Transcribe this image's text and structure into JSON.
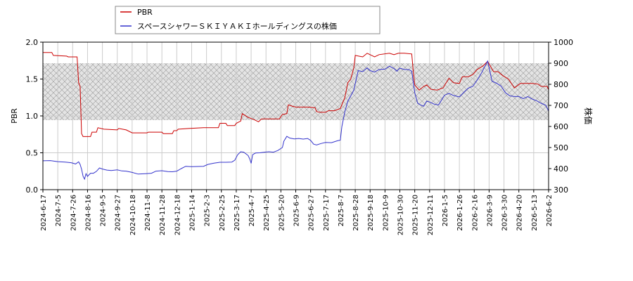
{
  "chart_data": {
    "type": "line",
    "legend": {
      "placement": "top-left",
      "items": [
        {
          "label": "PBR",
          "color": "#cc0000"
        },
        {
          "label": "スペースシャワーＳＫＩＹＡＫＩホールディングスの株価",
          "color": "#3333cc"
        }
      ]
    },
    "left_axis": {
      "label": "PBR",
      "range": [
        0,
        2.0
      ],
      "ticks": [
        "0.0",
        "0.5",
        "1.0",
        "1.5",
        "2.0"
      ]
    },
    "right_axis": {
      "label": "株価",
      "range": [
        300,
        1000
      ],
      "ticks": [
        "300",
        "400",
        "500",
        "600",
        "700",
        "800",
        "900",
        "1000"
      ]
    },
    "x_ticks": [
      "2024-6-17",
      "2024-7-5",
      "2024-7-26",
      "2024-8-16",
      "2024-9-5",
      "2024-9-27",
      "2024-10-18",
      "2024-11-8",
      "2024-11-28",
      "2024-12-18",
      "2025-1-14",
      "2025-2-3",
      "2025-2-25",
      "2025-3-17",
      "2025-4-7",
      "2025-4-25",
      "2025-5-20",
      "2025-6-9",
      "2025-6-27",
      "2025-7-17",
      "2025-8-7",
      "2025-8-28",
      "2025-9-18",
      "2025-10-9",
      "2025-10-30",
      "2025-11-20",
      "2025-12-11",
      "2026-1-5",
      "2026-1-26",
      "2026-2-16",
      "2026-3-9",
      "2026-3-30",
      "2026-4-20",
      "2026-5-13",
      "2026-6-2"
    ],
    "grid": true,
    "shaded_band": {
      "axis": "right",
      "range": [
        630,
        900
      ],
      "pattern": "crosshatch"
    },
    "series": [
      {
        "name": "PBR",
        "axis": "left",
        "color": "#cc0000",
        "points": [
          [
            0,
            1.86
          ],
          [
            0.6,
            1.86
          ],
          [
            0.7,
            1.82
          ],
          [
            1.6,
            1.81
          ],
          [
            1.7,
            1.8
          ],
          [
            2.3,
            1.8
          ],
          [
            2.4,
            1.45
          ],
          [
            2.5,
            1.4
          ],
          [
            2.6,
            0.76
          ],
          [
            2.7,
            0.72
          ],
          [
            3.2,
            0.72
          ],
          [
            3.3,
            0.78
          ],
          [
            3.6,
            0.78
          ],
          [
            3.7,
            0.84
          ],
          [
            4.1,
            0.82
          ],
          [
            5.0,
            0.81
          ],
          [
            5.1,
            0.83
          ],
          [
            5.6,
            0.81
          ],
          [
            6.0,
            0.77
          ],
          [
            7.0,
            0.77
          ],
          [
            7.1,
            0.78
          ],
          [
            8.0,
            0.78
          ],
          [
            8.1,
            0.76
          ],
          [
            8.7,
            0.76
          ],
          [
            8.8,
            0.8
          ],
          [
            9.0,
            0.8
          ],
          [
            9.1,
            0.82
          ],
          [
            9.8,
            0.83
          ],
          [
            10.8,
            0.84
          ],
          [
            11.8,
            0.84
          ],
          [
            11.9,
            0.9
          ],
          [
            12.3,
            0.9
          ],
          [
            12.4,
            0.87
          ],
          [
            12.9,
            0.87
          ],
          [
            13.0,
            0.9
          ],
          [
            13.3,
            0.93
          ],
          [
            13.4,
            1.03
          ],
          [
            13.8,
            0.98
          ],
          [
            14.2,
            0.95
          ],
          [
            14.5,
            0.92
          ],
          [
            14.7,
            0.96
          ],
          [
            15.5,
            0.96
          ],
          [
            15.9,
            0.96
          ],
          [
            16.1,
            1.02
          ],
          [
            16.4,
            1.03
          ],
          [
            16.5,
            1.15
          ],
          [
            16.8,
            1.13
          ],
          [
            17.0,
            1.12
          ],
          [
            17.8,
            1.12
          ],
          [
            18.3,
            1.11
          ],
          [
            18.4,
            1.06
          ],
          [
            18.6,
            1.05
          ],
          [
            19.0,
            1.05
          ],
          [
            19.2,
            1.07
          ],
          [
            19.6,
            1.07
          ],
          [
            20.0,
            1.1
          ],
          [
            20.3,
            1.25
          ],
          [
            20.5,
            1.45
          ],
          [
            20.7,
            1.5
          ],
          [
            20.9,
            1.65
          ],
          [
            21.0,
            1.82
          ],
          [
            21.5,
            1.8
          ],
          [
            21.8,
            1.85
          ],
          [
            22.0,
            1.83
          ],
          [
            22.3,
            1.8
          ],
          [
            22.6,
            1.83
          ],
          [
            23.3,
            1.85
          ],
          [
            23.6,
            1.83
          ],
          [
            23.9,
            1.85
          ],
          [
            24.3,
            1.85
          ],
          [
            24.8,
            1.84
          ],
          [
            24.9,
            1.6
          ],
          [
            25.0,
            1.42
          ],
          [
            25.3,
            1.35
          ],
          [
            25.6,
            1.4
          ],
          [
            25.8,
            1.42
          ],
          [
            26.1,
            1.36
          ],
          [
            26.5,
            1.35
          ],
          [
            26.9,
            1.38
          ],
          [
            27.3,
            1.51
          ],
          [
            27.6,
            1.45
          ],
          [
            28.0,
            1.44
          ],
          [
            28.2,
            1.53
          ],
          [
            28.6,
            1.53
          ],
          [
            28.9,
            1.56
          ],
          [
            29.2,
            1.63
          ],
          [
            29.6,
            1.68
          ],
          [
            29.9,
            1.74
          ],
          [
            30.3,
            1.6
          ],
          [
            30.6,
            1.6
          ],
          [
            30.9,
            1.55
          ],
          [
            31.3,
            1.5
          ],
          [
            31.7,
            1.38
          ],
          [
            32.1,
            1.44
          ],
          [
            32.9,
            1.44
          ],
          [
            33.3,
            1.43
          ],
          [
            33.5,
            1.4
          ],
          [
            33.9,
            1.4
          ],
          [
            34.1,
            1.31
          ],
          [
            34.7,
            1.31
          ],
          [
            35.0,
            1.31
          ]
        ]
      },
      {
        "name": "スペースシャワーＳＫＩＹＡＫＩホールディングスの株価",
        "axis": "right",
        "color": "#3333cc",
        "points": [
          [
            0,
            437
          ],
          [
            0.5,
            438
          ],
          [
            1.0,
            433
          ],
          [
            1.5,
            431
          ],
          [
            1.9,
            428
          ],
          [
            2.2,
            422
          ],
          [
            2.4,
            432
          ],
          [
            2.5,
            420
          ],
          [
            2.6,
            397
          ],
          [
            2.7,
            364
          ],
          [
            2.8,
            350
          ],
          [
            2.9,
            376
          ],
          [
            3.0,
            363
          ],
          [
            3.2,
            378
          ],
          [
            3.4,
            378
          ],
          [
            3.6,
            387
          ],
          [
            3.8,
            403
          ],
          [
            4.0,
            398
          ],
          [
            4.3,
            393
          ],
          [
            4.6,
            391
          ],
          [
            5.0,
            394
          ],
          [
            5.3,
            389
          ],
          [
            5.6,
            388
          ],
          [
            6.0,
            382
          ],
          [
            6.4,
            374
          ],
          [
            6.9,
            376
          ],
          [
            7.3,
            378
          ],
          [
            7.6,
            388
          ],
          [
            8.0,
            390
          ],
          [
            8.4,
            386
          ],
          [
            8.7,
            385
          ],
          [
            9.0,
            388
          ],
          [
            9.3,
            400
          ],
          [
            9.6,
            411
          ],
          [
            10.0,
            409
          ],
          [
            10.4,
            410
          ],
          [
            10.8,
            411
          ],
          [
            11.1,
            420
          ],
          [
            11.5,
            426
          ],
          [
            11.9,
            430
          ],
          [
            12.3,
            430
          ],
          [
            12.7,
            431
          ],
          [
            12.9,
            440
          ],
          [
            13.1,
            466
          ],
          [
            13.3,
            480
          ],
          [
            13.5,
            478
          ],
          [
            13.8,
            462
          ],
          [
            13.9,
            447
          ],
          [
            14.0,
            425
          ],
          [
            14.1,
            466
          ],
          [
            14.3,
            474
          ],
          [
            14.6,
            475
          ],
          [
            14.9,
            478
          ],
          [
            15.2,
            480
          ],
          [
            15.5,
            478
          ],
          [
            15.8,
            486
          ],
          [
            16.1,
            500
          ],
          [
            16.2,
            530
          ],
          [
            16.4,
            553
          ],
          [
            16.6,
            545
          ],
          [
            16.9,
            541
          ],
          [
            17.2,
            543
          ],
          [
            17.5,
            540
          ],
          [
            17.8,
            543
          ],
          [
            18.0,
            534
          ],
          [
            18.2,
            516
          ],
          [
            18.4,
            512
          ],
          [
            18.7,
            519
          ],
          [
            19.0,
            524
          ],
          [
            19.4,
            523
          ],
          [
            19.8,
            532
          ],
          [
            20.0,
            535
          ],
          [
            20.1,
            600
          ],
          [
            20.3,
            670
          ],
          [
            20.5,
            720
          ],
          [
            20.7,
            745
          ],
          [
            20.9,
            772
          ],
          [
            21.2,
            865
          ],
          [
            21.5,
            860
          ],
          [
            21.8,
            878
          ],
          [
            22.0,
            865
          ],
          [
            22.3,
            858
          ],
          [
            22.6,
            870
          ],
          [
            23.0,
            872
          ],
          [
            23.3,
            886
          ],
          [
            23.6,
            875
          ],
          [
            23.8,
            862
          ],
          [
            24.0,
            877
          ],
          [
            24.3,
            870
          ],
          [
            24.6,
            870
          ],
          [
            24.8,
            862
          ],
          [
            25.0,
            760
          ],
          [
            25.2,
            710
          ],
          [
            25.4,
            702
          ],
          [
            25.6,
            696
          ],
          [
            25.8,
            720
          ],
          [
            26.0,
            716
          ],
          [
            26.3,
            706
          ],
          [
            26.6,
            702
          ],
          [
            27.0,
            748
          ],
          [
            27.3,
            757
          ],
          [
            27.6,
            747
          ],
          [
            28.0,
            740
          ],
          [
            28.3,
            762
          ],
          [
            28.6,
            782
          ],
          [
            28.9,
            790
          ],
          [
            29.2,
            820
          ],
          [
            29.5,
            855
          ],
          [
            29.9,
            910
          ],
          [
            30.2,
            815
          ],
          [
            30.5,
            805
          ],
          [
            30.8,
            792
          ],
          [
            31.1,
            760
          ],
          [
            31.4,
            745
          ],
          [
            31.7,
            742
          ],
          [
            32.0,
            742
          ],
          [
            32.3,
            732
          ],
          [
            32.6,
            742
          ],
          [
            32.9,
            730
          ],
          [
            33.2,
            722
          ],
          [
            33.5,
            710
          ],
          [
            33.8,
            701
          ],
          [
            34.1,
            660
          ],
          [
            34.4,
            650
          ],
          [
            34.7,
            640
          ],
          [
            35.0,
            650
          ]
        ]
      }
    ]
  }
}
